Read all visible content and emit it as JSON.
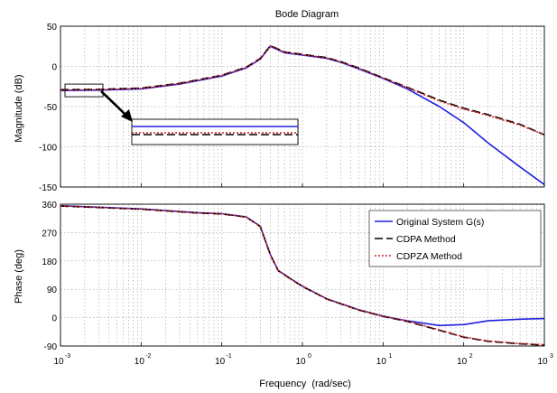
{
  "chart_data": [
    {
      "type": "line",
      "title": "Bode Diagram",
      "ylabel": "Magnitude (dB)",
      "xlabel": "",
      "x_scale": "log",
      "xlim": [
        0.001,
        1000
      ],
      "ylim": [
        -150,
        50
      ],
      "y_ticks": [
        "50",
        "0",
        "-50",
        "-100",
        "-150"
      ],
      "grid": true,
      "x": [
        0.001,
        0.003,
        0.01,
        0.03,
        0.1,
        0.2,
        0.3,
        0.4,
        0.6,
        1,
        2,
        3,
        5,
        10,
        20,
        50,
        100,
        200,
        500,
        1000
      ],
      "series": [
        {
          "name": "Original System G(s)",
          "color": "#1f1fe0",
          "dash": "solid",
          "values": [
            -30,
            -29.5,
            -28,
            -22,
            -12,
            -2,
            9,
            25,
            17,
            14,
            10,
            5,
            -3,
            -15,
            -28,
            -50,
            -70,
            -95,
            -125,
            -147
          ]
        },
        {
          "name": "CDPA Method",
          "color": "#000000",
          "dash": "long",
          "values": [
            -29,
            -28.5,
            -27,
            -21,
            -11,
            -1,
            10,
            26,
            18,
            15,
            11,
            6,
            -2,
            -14,
            -26,
            -42,
            -52,
            -60,
            -72,
            -85
          ]
        },
        {
          "name": "CDPZA Method",
          "color": "#cc1f1f",
          "dash": "dot",
          "values": [
            -29.5,
            -29,
            -27.5,
            -21.5,
            -11.5,
            -1.5,
            9.5,
            25.5,
            17.5,
            14.5,
            10.5,
            5.5,
            -2.5,
            -14.5,
            -26.5,
            -43,
            -53,
            -61,
            -73,
            -85
          ]
        }
      ]
    },
    {
      "type": "line",
      "ylabel": "Phase (deg)",
      "xlabel": "Frequency  (rad/sec)",
      "x_scale": "log",
      "xlim": [
        0.001,
        1000
      ],
      "ylim": [
        -90,
        360
      ],
      "y_ticks": [
        "360",
        "270",
        "180",
        "90",
        "0",
        "-90"
      ],
      "x_ticks": [
        "10",
        "10",
        "10",
        "10",
        "10",
        "10",
        "10"
      ],
      "x_tick_exponents": [
        "-3",
        "-2",
        "-1",
        "0",
        "1",
        "2",
        "3"
      ],
      "grid": true,
      "legend_position": "top-right",
      "x": [
        0.001,
        0.01,
        0.05,
        0.1,
        0.2,
        0.3,
        0.4,
        0.5,
        0.7,
        1,
        2,
        5,
        10,
        20,
        50,
        100,
        200,
        500,
        1000
      ],
      "series": [
        {
          "name": "Original System G(s)",
          "color": "#1f1fe0",
          "dash": "solid",
          "values": [
            355,
            345,
            333,
            330,
            320,
            290,
            200,
            150,
            125,
            100,
            60,
            25,
            5,
            -10,
            -25,
            -22,
            -10,
            -5,
            -3
          ]
        },
        {
          "name": "CDPA Method",
          "color": "#000000",
          "dash": "long",
          "values": [
            354,
            344,
            332,
            329,
            319,
            289,
            199,
            149,
            124,
            99,
            59,
            24,
            4,
            -12,
            -40,
            -62,
            -75,
            -83,
            -87
          ]
        },
        {
          "name": "CDPZA Method",
          "color": "#cc1f1f",
          "dash": "dot",
          "values": [
            354.5,
            344.5,
            332.5,
            329.5,
            319.5,
            289.5,
            199.5,
            149.5,
            124.5,
            99.5,
            59.5,
            24.5,
            4.5,
            -11,
            -39,
            -61,
            -74,
            -82,
            -86
          ]
        }
      ]
    }
  ]
}
